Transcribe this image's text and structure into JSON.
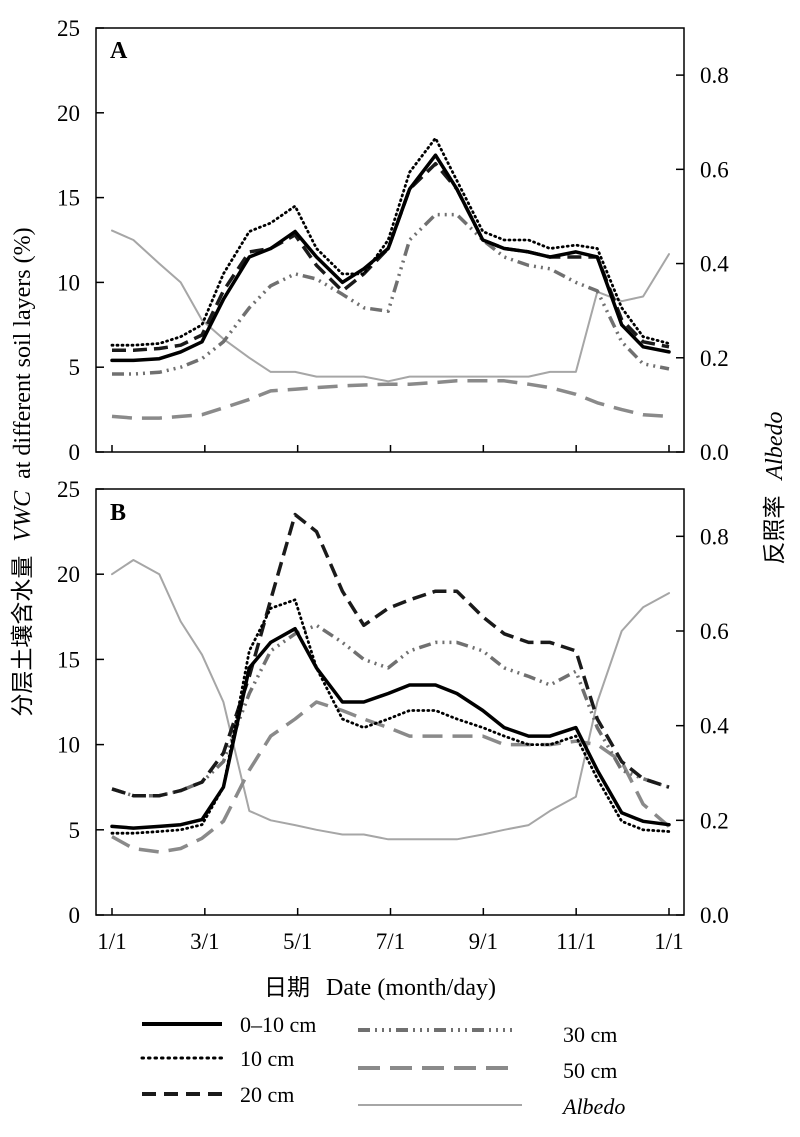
{
  "x_axis": {
    "title_cn": "日期",
    "title_en": "Date (month/day)",
    "ticks": [
      "1/1",
      "3/1",
      "5/1",
      "7/1",
      "9/1",
      "11/1",
      "1/1"
    ]
  },
  "y_left": {
    "title_cn": "分层土壤含水量",
    "title_var": "VWC",
    "title_rest": "at different soil layers (%)"
  },
  "y_right": {
    "title_cn": "反照率",
    "title_var": "Albedo"
  },
  "legend": [
    {
      "key": "s0",
      "label": "0–10 cm"
    },
    {
      "key": "s10",
      "label": "10 cm"
    },
    {
      "key": "s20",
      "label": "20 cm"
    },
    {
      "key": "s30",
      "label": "30 cm"
    },
    {
      "key": "s50",
      "label": "50 cm"
    },
    {
      "key": "alb",
      "label": "Albedo"
    }
  ],
  "colors": {
    "s0": "#000000",
    "s10": "#000000",
    "s20": "#1a1a1a",
    "s30": "#707070",
    "s50": "#8a8a8a",
    "alb": "#a6a6a6"
  },
  "chart_data": [
    {
      "type": "line",
      "panel": "A",
      "ylim": [
        0,
        25
      ],
      "yticks": [
        0,
        5,
        10,
        15,
        20,
        25
      ],
      "y2lim": [
        0,
        0.9
      ],
      "y2ticks": [
        "0.0",
        "0.2",
        "0.4",
        "0.6",
        "0.8"
      ],
      "x": [
        "1/1",
        "1/15",
        "2/1",
        "2/15",
        "3/1",
        "3/15",
        "4/1",
        "4/15",
        "5/1",
        "5/15",
        "6/1",
        "6/15",
        "7/1",
        "7/15",
        "8/1",
        "8/15",
        "9/1",
        "9/15",
        "10/1",
        "10/15",
        "11/1",
        "11/15",
        "12/1",
        "12/15",
        "12/31"
      ],
      "series": [
        {
          "key": "s0",
          "name": "0–10 cm",
          "axis": "left",
          "values": [
            5.4,
            5.4,
            5.5,
            5.9,
            6.5,
            9.0,
            11.5,
            12.0,
            13.0,
            11.5,
            10.0,
            10.8,
            12.0,
            15.5,
            17.5,
            15.5,
            12.5,
            12.0,
            11.8,
            11.5,
            11.8,
            11.5,
            7.5,
            6.2,
            5.9
          ]
        },
        {
          "key": "s10",
          "name": "10 cm",
          "axis": "left",
          "values": [
            6.3,
            6.3,
            6.4,
            6.8,
            7.5,
            10.5,
            13.0,
            13.5,
            14.5,
            12.0,
            10.5,
            10.5,
            12.5,
            16.5,
            18.5,
            16.0,
            13.0,
            12.5,
            12.5,
            12.0,
            12.2,
            12.0,
            8.5,
            6.8,
            6.4
          ]
        },
        {
          "key": "s20",
          "name": "20 cm",
          "axis": "left",
          "values": [
            6.0,
            6.0,
            6.1,
            6.3,
            6.9,
            9.5,
            11.8,
            12.0,
            12.8,
            11.0,
            9.5,
            10.5,
            12.0,
            15.5,
            17.0,
            15.5,
            12.5,
            12.0,
            11.8,
            11.5,
            11.5,
            11.5,
            7.8,
            6.5,
            6.2
          ]
        },
        {
          "key": "s30",
          "name": "30 cm",
          "axis": "left",
          "values": [
            4.6,
            4.6,
            4.7,
            5.0,
            5.5,
            6.5,
            8.5,
            9.8,
            10.5,
            10.2,
            9.3,
            8.5,
            8.3,
            12.5,
            14.0,
            14.0,
            12.5,
            11.5,
            11.0,
            10.8,
            10.0,
            9.5,
            6.5,
            5.2,
            4.9
          ]
        },
        {
          "key": "s50",
          "name": "50 cm",
          "axis": "left",
          "values": [
            2.1,
            2.0,
            2.0,
            2.1,
            2.2,
            2.6,
            3.1,
            3.6,
            3.7,
            3.8,
            3.9,
            3.95,
            4.0,
            4.0,
            4.1,
            4.2,
            4.2,
            4.2,
            4.0,
            3.8,
            3.4,
            2.9,
            2.5,
            2.2,
            2.1
          ]
        },
        {
          "key": "alb",
          "name": "Albedo",
          "axis": "right",
          "values": [
            0.47,
            0.45,
            0.4,
            0.36,
            0.28,
            0.24,
            0.2,
            0.17,
            0.17,
            0.16,
            0.16,
            0.16,
            0.15,
            0.16,
            0.16,
            0.16,
            0.16,
            0.16,
            0.16,
            0.17,
            0.17,
            0.34,
            0.32,
            0.33,
            0.42
          ]
        }
      ]
    },
    {
      "type": "line",
      "panel": "B",
      "ylim": [
        0,
        25
      ],
      "yticks": [
        0,
        5,
        10,
        15,
        20,
        25
      ],
      "y2lim": [
        0,
        0.9
      ],
      "y2ticks": [
        "0.0",
        "0.2",
        "0.4",
        "0.6",
        "0.8"
      ],
      "x": [
        "1/1",
        "1/15",
        "2/1",
        "2/15",
        "3/1",
        "3/15",
        "4/1",
        "4/15",
        "5/1",
        "5/15",
        "6/1",
        "6/15",
        "7/1",
        "7/15",
        "8/1",
        "8/15",
        "9/1",
        "9/15",
        "10/1",
        "10/15",
        "11/1",
        "11/15",
        "12/1",
        "12/15",
        "12/31"
      ],
      "series": [
        {
          "key": "s0",
          "name": "0–10 cm",
          "axis": "left",
          "values": [
            5.2,
            5.1,
            5.2,
            5.3,
            5.6,
            7.5,
            14.5,
            16.0,
            16.8,
            14.5,
            12.5,
            12.5,
            13.0,
            13.5,
            13.5,
            13.0,
            12.0,
            11.0,
            10.5,
            10.5,
            11.0,
            8.5,
            6.0,
            5.5,
            5.3
          ]
        },
        {
          "key": "s10",
          "name": "10 cm",
          "axis": "left",
          "values": [
            4.8,
            4.8,
            4.9,
            5.0,
            5.3,
            7.5,
            15.5,
            18.0,
            18.5,
            14.5,
            11.5,
            11.0,
            11.5,
            12.0,
            12.0,
            11.5,
            11.0,
            10.5,
            10.0,
            10.0,
            10.5,
            8.0,
            5.5,
            5.0,
            4.9
          ]
        },
        {
          "key": "s20",
          "name": "20 cm",
          "axis": "left",
          "values": [
            7.4,
            7.0,
            7.0,
            7.3,
            7.8,
            9.5,
            14.0,
            18.5,
            23.5,
            22.5,
            19.0,
            17.0,
            18.0,
            18.5,
            19.0,
            19.0,
            17.5,
            16.5,
            16.0,
            16.0,
            15.5,
            11.5,
            9.0,
            8.0,
            7.5
          ]
        },
        {
          "key": "s30",
          "name": "30 cm",
          "axis": "left",
          "values": [
            7.4,
            7.0,
            7.0,
            7.3,
            7.8,
            9.0,
            13.0,
            15.5,
            16.5,
            17.0,
            16.0,
            15.0,
            14.5,
            15.5,
            16.0,
            16.0,
            15.5,
            14.5,
            14.0,
            13.5,
            14.3,
            11.0,
            8.5,
            8.0,
            7.5
          ]
        },
        {
          "key": "s50",
          "name": "50 cm",
          "axis": "left",
          "values": [
            4.6,
            3.9,
            3.7,
            3.9,
            4.5,
            5.5,
            8.5,
            10.5,
            11.5,
            12.5,
            12.0,
            11.5,
            11.0,
            10.5,
            10.5,
            10.5,
            10.5,
            10.0,
            10.0,
            10.0,
            10.2,
            10.0,
            9.0,
            6.5,
            5.2
          ]
        },
        {
          "key": "alb",
          "name": "Albedo",
          "axis": "right",
          "values": [
            0.72,
            0.75,
            0.72,
            0.62,
            0.55,
            0.45,
            0.22,
            0.2,
            0.19,
            0.18,
            0.17,
            0.17,
            0.16,
            0.16,
            0.16,
            0.16,
            0.17,
            0.18,
            0.19,
            0.22,
            0.25,
            0.45,
            0.6,
            0.65,
            0.68
          ]
        }
      ]
    }
  ]
}
